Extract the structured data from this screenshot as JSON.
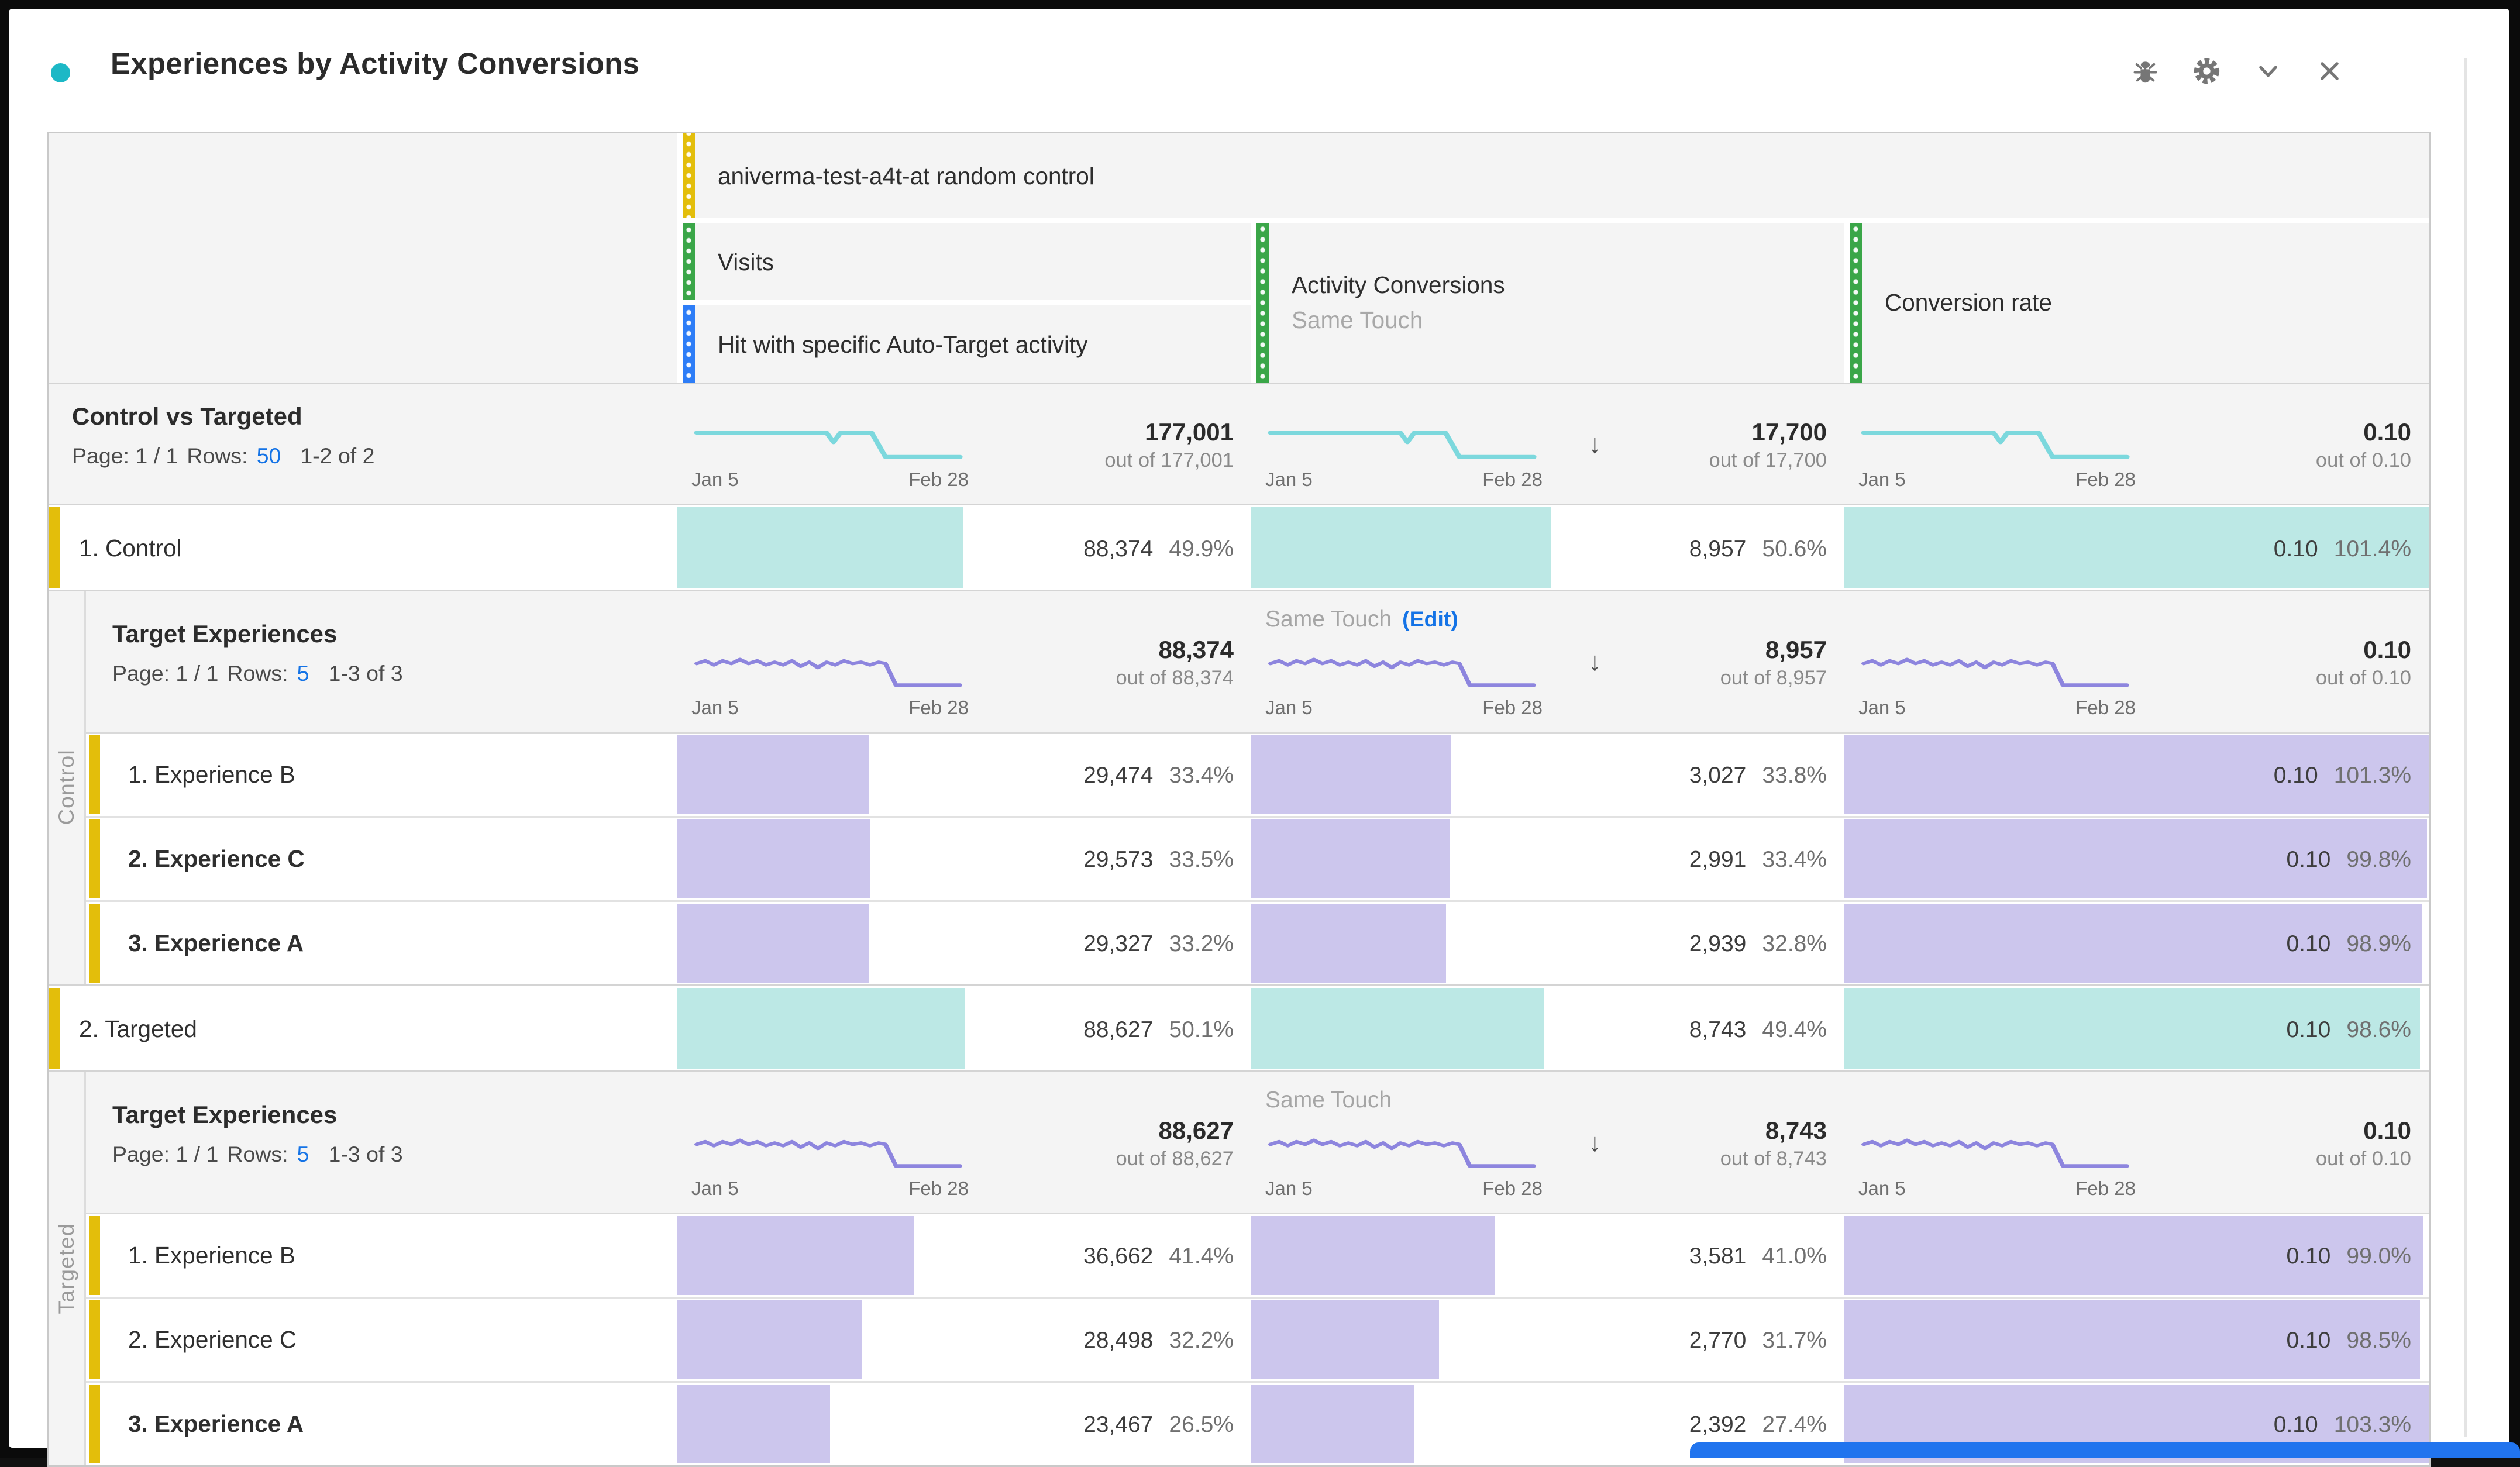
{
  "panel": {
    "title": "Experiences by Activity Conversions",
    "icons": [
      "debug-icon",
      "settings-icon",
      "collapse-icon",
      "close-icon"
    ],
    "accent_colors": {
      "dimension_yellow": "#E3BE0B",
      "metric_green": "#3AA648",
      "segment_blue": "#2D7DF7",
      "teal_fill": "#BCE8E5",
      "purple_fill": "#CCC6ED",
      "link_blue": "#1473E6",
      "panel_dot": "#1CB8C6"
    }
  },
  "dates": {
    "start": "Jan 5",
    "end": "Feb 28"
  },
  "header": {
    "activity": "aniverma-test-a4t-at random control",
    "visits_label": "Visits",
    "segment_label": "Hit with specific Auto-Target activity",
    "conversions_label": "Activity Conversions",
    "conversions_sublabel": "Same Touch",
    "rate_label": "Conversion rate"
  },
  "summary": {
    "title": "Control vs Targeted",
    "page_label": "Page: 1 / 1",
    "rows_label": "Rows:",
    "rows_value": "50",
    "range_label": "1-2 of 2",
    "visits_value": "177,001",
    "visits_outof": "out of 177,001",
    "conv_value": "17,700",
    "conv_outof": "out of 17,700",
    "rate_value": "0.10",
    "rate_outof": "out of 0.10"
  },
  "groups": [
    {
      "side_label": "Control",
      "row_label": "1. Control",
      "row": {
        "visits_value": "88,374",
        "visits_pct": "49.9%",
        "visits_fill": 49.9,
        "conv_value": "8,957",
        "conv_pct": "50.6%",
        "conv_fill": 50.6,
        "rate_value": "0.10",
        "rate_pct": "101.4%",
        "rate_fill": 100
      },
      "sub": {
        "title": "Target Experiences",
        "page_label": "Page: 1 / 1",
        "rows_label": "Rows:",
        "rows_value": "5",
        "range_label": "1-3 of 3",
        "same_touch": "Same Touch",
        "edit_link": "(Edit)",
        "visits_value": "88,374",
        "visits_outof": "out of 88,374",
        "conv_value": "8,957",
        "conv_outof": "out of 8,957",
        "rate_value": "0.10",
        "rate_outof": "out of 0.10"
      },
      "experiences": [
        {
          "label": "1. Experience B",
          "weight": "w-regular",
          "visits_value": "29,474",
          "visits_pct": "33.4%",
          "visits_fill": 33.4,
          "conv_value": "3,027",
          "conv_pct": "33.8%",
          "conv_fill": 33.8,
          "rate_value": "0.10",
          "rate_pct": "101.3%",
          "rate_fill": 100
        },
        {
          "label": "2. Experience C",
          "weight": "w-bold",
          "visits_value": "29,573",
          "visits_pct": "33.5%",
          "visits_fill": 33.5,
          "conv_value": "2,991",
          "conv_pct": "33.4%",
          "conv_fill": 33.4,
          "rate_value": "0.10",
          "rate_pct": "99.8%",
          "rate_fill": 99.8
        },
        {
          "label": "3. Experience A",
          "weight": "w-bold",
          "visits_value": "29,327",
          "visits_pct": "33.2%",
          "visits_fill": 33.2,
          "conv_value": "2,939",
          "conv_pct": "32.8%",
          "conv_fill": 32.8,
          "rate_value": "0.10",
          "rate_pct": "98.9%",
          "rate_fill": 98.9
        }
      ]
    },
    {
      "side_label": "Targeted",
      "row_label": "2. Targeted",
      "row": {
        "visits_value": "88,627",
        "visits_pct": "50.1%",
        "visits_fill": 50.1,
        "conv_value": "8,743",
        "conv_pct": "49.4%",
        "conv_fill": 49.4,
        "rate_value": "0.10",
        "rate_pct": "98.6%",
        "rate_fill": 98.6
      },
      "sub": {
        "title": "Target Experiences",
        "page_label": "Page: 1 / 1",
        "rows_label": "Rows:",
        "rows_value": "5",
        "range_label": "1-3 of 3",
        "same_touch": "Same Touch",
        "edit_link": "",
        "visits_value": "88,627",
        "visits_outof": "out of 88,627",
        "conv_value": "8,743",
        "conv_outof": "out of 8,743",
        "rate_value": "0.10",
        "rate_outof": "out of 0.10"
      },
      "experiences": [
        {
          "label": "1. Experience B",
          "weight": "w-regular",
          "visits_value": "36,662",
          "visits_pct": "41.4%",
          "visits_fill": 41.4,
          "conv_value": "3,581",
          "conv_pct": "41.0%",
          "conv_fill": 41.0,
          "rate_value": "0.10",
          "rate_pct": "99.0%",
          "rate_fill": 99.0
        },
        {
          "label": "2. Experience C",
          "weight": "w-regular",
          "visits_value": "28,498",
          "visits_pct": "32.2%",
          "visits_fill": 32.2,
          "conv_value": "2,770",
          "conv_pct": "31.7%",
          "conv_fill": 31.7,
          "rate_value": "0.10",
          "rate_pct": "98.5%",
          "rate_fill": 98.5
        },
        {
          "label": "3. Experience A",
          "weight": "w-bold",
          "visits_value": "23,467",
          "visits_pct": "26.5%",
          "visits_fill": 26.5,
          "conv_value": "2,392",
          "conv_pct": "27.4%",
          "conv_fill": 27.4,
          "rate_value": "0.10",
          "rate_pct": "103.3%",
          "rate_fill": 100
        }
      ]
    }
  ]
}
